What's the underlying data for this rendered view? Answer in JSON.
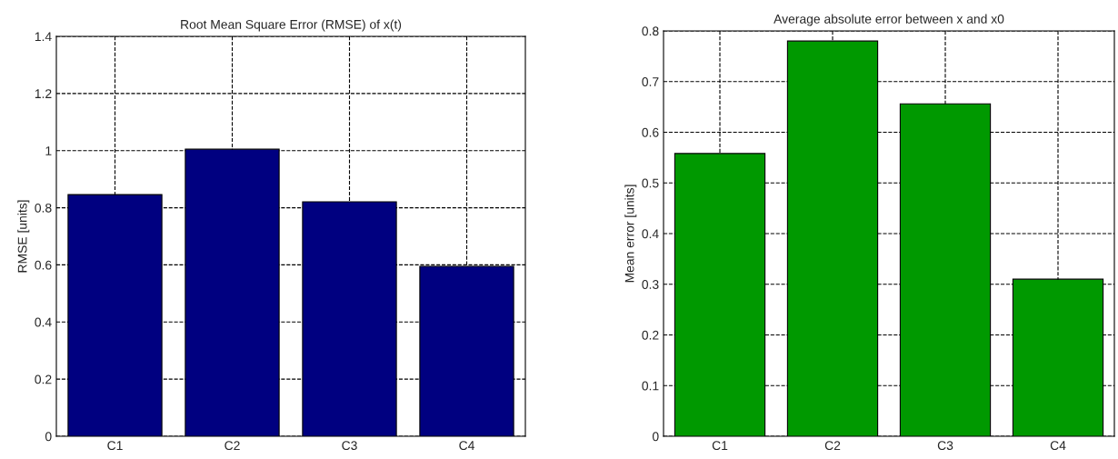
{
  "chart_data": [
    {
      "type": "bar",
      "title": "Root Mean Square Error (RMSE) of x(t)",
      "ylabel": "RMSE [units]",
      "categories": [
        "C1",
        "C2",
        "C3",
        "C4"
      ],
      "values": [
        0.846,
        1.005,
        0.821,
        0.595
      ],
      "color": "#000080",
      "ylim": [
        0,
        1.4
      ],
      "yticks": [
        0,
        0.2,
        0.4,
        0.6,
        0.8,
        1,
        1.2,
        1.4
      ],
      "grid": true,
      "line_style": "dashed"
    },
    {
      "type": "bar",
      "title": "Average absolute error between x and x0",
      "ylabel": "Mean error [units]",
      "categories": [
        "C1",
        "C2",
        "C3",
        "C4"
      ],
      "values": [
        0.558,
        0.78,
        0.656,
        0.31
      ],
      "color": "#009900",
      "ylim": [
        0,
        0.8
      ],
      "yticks": [
        0,
        0.1,
        0.2,
        0.3,
        0.4,
        0.5,
        0.6,
        0.7,
        0.8
      ],
      "grid": true,
      "line_style": "dashed"
    }
  ]
}
